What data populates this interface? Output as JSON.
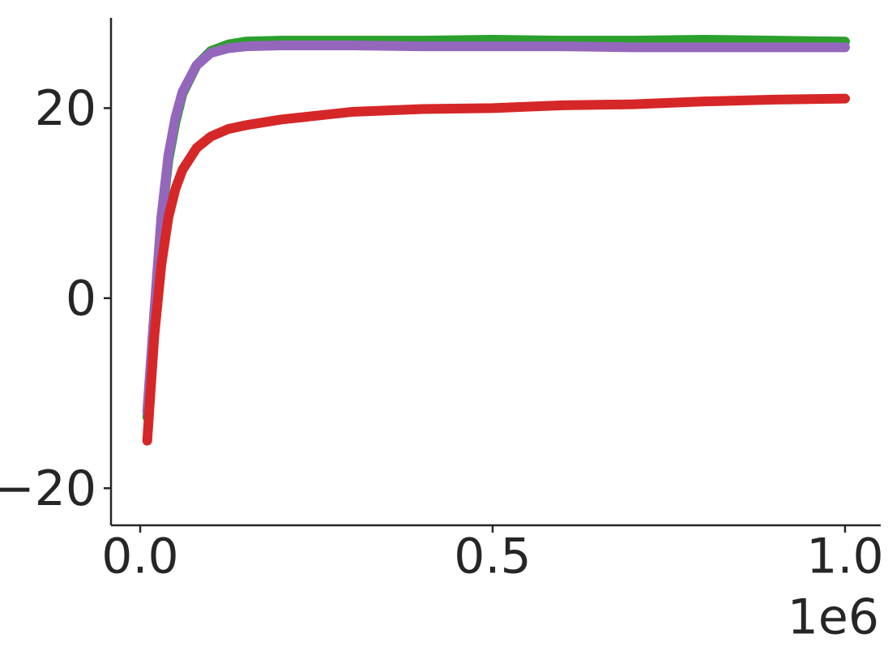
{
  "chart_data": {
    "type": "line",
    "x": [
      10000,
      20000,
      30000,
      40000,
      50000,
      60000,
      80000,
      100000,
      125000,
      150000,
      200000,
      300000,
      400000,
      500000,
      600000,
      700000,
      800000,
      900000,
      1000000
    ],
    "series": [
      {
        "color": "#2ca02c",
        "values": [
          -12.5,
          -2,
          8,
          14.5,
          18.5,
          21.5,
          24.5,
          26,
          26.7,
          27,
          27.1,
          27.1,
          27.1,
          27.2,
          27.1,
          27.1,
          27.2,
          27.1,
          27.0
        ]
      },
      {
        "color": "#9467bd",
        "values": [
          -12,
          -1.5,
          8.5,
          15,
          19,
          21.7,
          24.5,
          25.8,
          26.3,
          26.5,
          26.6,
          26.6,
          26.5,
          26.5,
          26.5,
          26.4,
          26.4,
          26.4,
          26.4
        ]
      },
      {
        "color": "#d62728",
        "values": [
          -15,
          -4,
          3.5,
          8.5,
          11.5,
          13.5,
          15.8,
          17,
          17.8,
          18.2,
          18.8,
          19.6,
          19.9,
          20.0,
          20.3,
          20.4,
          20.7,
          20.9,
          21.0
        ]
      }
    ],
    "xlim": [
      -41400,
      1050600
    ],
    "ylim": [
      -23.9,
      29.5
    ],
    "xticks": [
      {
        "value": 0,
        "label": "0.0"
      },
      {
        "value": 500000,
        "label": "0.5"
      },
      {
        "value": 1000000,
        "label": "1.0"
      }
    ],
    "x_offset_label": "1e6",
    "yticks": [
      {
        "value": -20,
        "label": "−20"
      },
      0,
      20
    ],
    "grid": false
  }
}
